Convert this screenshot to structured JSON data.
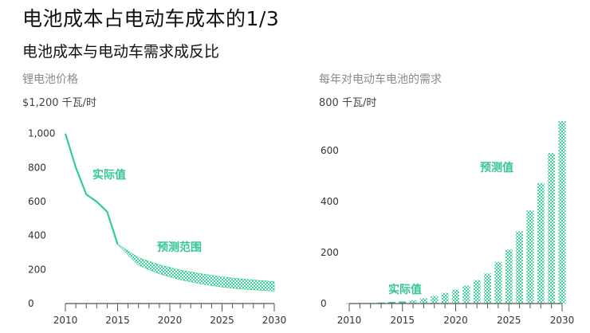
{
  "title": "电池成本占电动车成本的1/3",
  "subtitle": "电池成本与电动车需求成反比",
  "colors": {
    "accent": "#2fcf90",
    "axis": "#555555",
    "tick_text": "#333333",
    "muted": "#8a8a8a"
  },
  "chart_data": [
    {
      "type": "line",
      "title": "锂电池价格",
      "ylabel": "$1,200 千瓦/时",
      "xlim": [
        2010,
        2030
      ],
      "ylim": [
        0,
        1200
      ],
      "x_ticks": [
        2010,
        2015,
        2020,
        2025,
        2030
      ],
      "y_ticks": [
        0,
        200,
        400,
        600,
        800,
        1000
      ],
      "y_tick_labels": [
        "0",
        "200",
        "400",
        "600",
        "800",
        "1,000"
      ],
      "series": [
        {
          "name": "实际值",
          "style": "solid",
          "x": [
            2010,
            2011,
            2012,
            2013,
            2014,
            2015
          ],
          "y": [
            1000,
            800,
            642,
            599,
            540,
            349
          ]
        },
        {
          "name": "预测范围",
          "style": "band",
          "x": [
            2015,
            2017,
            2019,
            2021,
            2023,
            2025,
            2027,
            2030
          ],
          "y_upper": [
            349,
            270,
            228,
            197,
            175,
            157,
            144,
            128
          ],
          "y_lower": [
            349,
            225,
            175,
            140,
            115,
            97,
            85,
            73
          ]
        }
      ],
      "annotations": [
        {
          "text": "实际值"
        },
        {
          "text": "预测范围"
        }
      ]
    },
    {
      "type": "bar",
      "title": "每年对电动车电池的需求",
      "ylabel": "800 千瓦/时",
      "xlim": [
        2010,
        2030
      ],
      "ylim": [
        0,
        800
      ],
      "x_ticks": [
        2010,
        2015,
        2020,
        2025,
        2030
      ],
      "y_ticks": [
        0,
        200,
        400,
        600
      ],
      "y_tick_labels": [
        "0",
        "200",
        "400",
        "600"
      ],
      "series": [
        {
          "name": "实际值",
          "style": "solid",
          "x": [
            2010,
            2011,
            2012,
            2013,
            2014,
            2015
          ],
          "values": [
            0.5,
            1,
            2,
            4,
            6,
            8
          ]
        },
        {
          "name": "预测值",
          "style": "pattern",
          "x": [
            2016,
            2017,
            2018,
            2019,
            2020,
            2021,
            2022,
            2023,
            2024,
            2025,
            2026,
            2027,
            2028,
            2029,
            2030
          ],
          "values": [
            13,
            20,
            30,
            42,
            55,
            70,
            92,
            118,
            163,
            212,
            283,
            365,
            473,
            590,
            716
          ]
        }
      ],
      "annotations": [
        {
          "text": "实际值"
        },
        {
          "text": "预测值"
        }
      ]
    }
  ]
}
